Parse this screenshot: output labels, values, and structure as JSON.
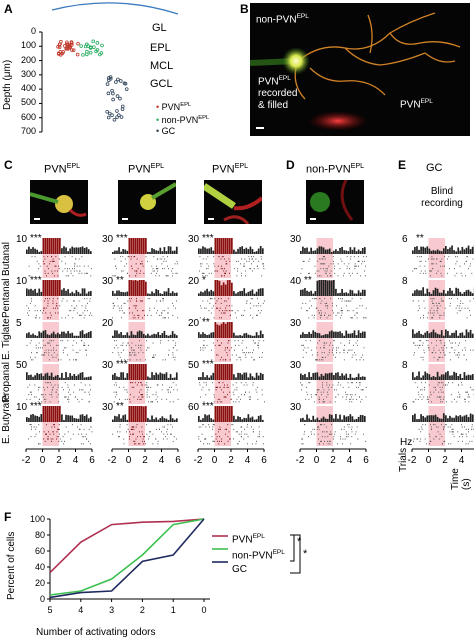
{
  "panels": {
    "A": "A",
    "B": "B",
    "C": "C",
    "D": "D",
    "E": "E",
    "F": "F"
  },
  "panelA": {
    "ylabel": "Depth (μm)",
    "yticks": [
      "0",
      "100",
      "200",
      "300",
      "400",
      "500",
      "600",
      "700"
    ],
    "layers": [
      "GL",
      "EPL",
      "MCL",
      "GCL"
    ],
    "legend": [
      {
        "label": "PVN",
        "sup": "EPL",
        "color": "#c0392b"
      },
      {
        "label": "non-PVN",
        "sup": "EPL",
        "color": "#27ae60"
      },
      {
        "label": "GC",
        "sup": "",
        "color": "#2c3e50"
      }
    ]
  },
  "panelB": {
    "label_nonpvn": "non-PVN",
    "label_nonpvn_sup": "EPL",
    "label_pvn_rec": "PVN",
    "label_pvn_rec_sup": "EPL",
    "label_rec1": "recorded",
    "label_rec2": "& filled",
    "label_pvn2": "PVN",
    "label_pvn2_sup": "EPL"
  },
  "panelC": {
    "columns": [
      {
        "title": "PVN",
        "sup": "EPL"
      },
      {
        "title": "PVN",
        "sup": "EPL"
      },
      {
        "title": "PVN",
        "sup": "EPL"
      }
    ],
    "odors": [
      "Butanal",
      "Pentanal",
      "E. Tiglate",
      "Propanal",
      "E. Butyrate"
    ]
  },
  "panelD": {
    "title": "non-PVN",
    "sup": "EPL"
  },
  "panelE": {
    "title": "GC",
    "sub1": "Blind",
    "sub2": "recording",
    "hz": "Hz",
    "trials": "Trials"
  },
  "rasterCells": [
    {
      "col": 0,
      "row": 0,
      "scale": "10",
      "sig": "***"
    },
    {
      "col": 0,
      "row": 1,
      "scale": "10",
      "sig": "***"
    },
    {
      "col": 0,
      "row": 2,
      "scale": "5",
      "sig": ""
    },
    {
      "col": 0,
      "row": 3,
      "scale": "50",
      "sig": ""
    },
    {
      "col": 0,
      "row": 4,
      "scale": "10",
      "sig": "***"
    },
    {
      "col": 1,
      "row": 0,
      "scale": "30",
      "sig": "***"
    },
    {
      "col": 1,
      "row": 1,
      "scale": "30",
      "sig": "**"
    },
    {
      "col": 1,
      "row": 2,
      "scale": "20",
      "sig": ""
    },
    {
      "col": 1,
      "row": 3,
      "scale": "30",
      "sig": "***"
    },
    {
      "col": 1,
      "row": 4,
      "scale": "30",
      "sig": "**"
    },
    {
      "col": 2,
      "row": 0,
      "scale": "30",
      "sig": "***"
    },
    {
      "col": 2,
      "row": 1,
      "scale": "20",
      "sig": "*"
    },
    {
      "col": 2,
      "row": 2,
      "scale": "20",
      "sig": "**"
    },
    {
      "col": 2,
      "row": 3,
      "scale": "50",
      "sig": "***"
    },
    {
      "col": 2,
      "row": 4,
      "scale": "60",
      "sig": "***"
    },
    {
      "col": 3,
      "row": 0,
      "scale": "30",
      "sig": ""
    },
    {
      "col": 3,
      "row": 1,
      "scale": "40",
      "sig": "**"
    },
    {
      "col": 3,
      "row": 2,
      "scale": "30",
      "sig": ""
    },
    {
      "col": 3,
      "row": 3,
      "scale": "30",
      "sig": ""
    },
    {
      "col": 3,
      "row": 4,
      "scale": "30",
      "sig": ""
    },
    {
      "col": 4,
      "row": 0,
      "scale": "6",
      "sig": "**"
    },
    {
      "col": 4,
      "row": 1,
      "scale": "8",
      "sig": ""
    },
    {
      "col": 4,
      "row": 2,
      "scale": "8",
      "sig": ""
    },
    {
      "col": 4,
      "row": 3,
      "scale": "8",
      "sig": ""
    },
    {
      "col": 4,
      "row": 4,
      "scale": "6",
      "sig": ""
    }
  ],
  "timeAxis": {
    "ticks": [
      "-2",
      "0",
      "2",
      "4",
      "6"
    ],
    "label": "Time (s)"
  },
  "chart_data": {
    "type": "line",
    "xlabel": "Number of activating odors",
    "ylabel": "Percent of cells",
    "x": [
      5,
      4,
      3,
      2,
      1,
      0
    ],
    "ylim": [
      0,
      100
    ],
    "yticks": [
      0,
      20,
      40,
      60,
      80,
      100
    ],
    "series": [
      {
        "name": "PVN",
        "name_sup": "EPL",
        "color": "#b03050",
        "values": [
          33,
          71,
          93,
          96,
          97,
          100
        ]
      },
      {
        "name": "non-PVN",
        "name_sup": "EPL",
        "color": "#3cc050",
        "values": [
          5,
          10,
          25,
          55,
          93,
          100
        ]
      },
      {
        "name": "GC",
        "name_sup": "",
        "color": "#202a60",
        "values": [
          2,
          8,
          10,
          47,
          55,
          100
        ]
      }
    ],
    "sig": [
      "*",
      "*"
    ]
  }
}
